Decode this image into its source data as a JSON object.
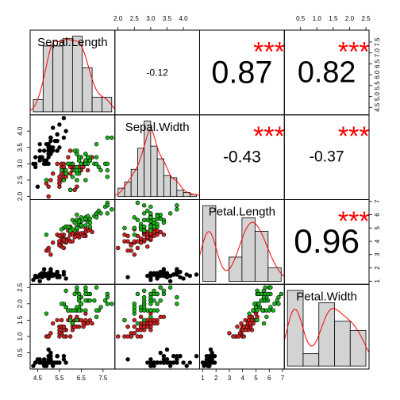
{
  "chart_data": {
    "type": "scatter_matrix",
    "variables": [
      {
        "name": "Sepal.Length",
        "lim": [
          4.156,
          8.044
        ],
        "xticks": [
          4.5,
          5.5,
          6.5,
          7.5
        ],
        "yticks": [
          4.5,
          {
            "value": 5,
            "label": "5.0"
          },
          5.5,
          {
            "value": 6,
            "label": "6.0"
          },
          6.5,
          {
            "value": 7,
            "label": "7.0"
          },
          7.5
        ],
        "bins": [
          4,
          4.5,
          5,
          5.5,
          6,
          6.5,
          7,
          7.5,
          8
        ],
        "counts": [
          5,
          27,
          27,
          30,
          31,
          18,
          6,
          6
        ]
      },
      {
        "name": "Sepal.Width",
        "lim": [
          1.904,
          4.496
        ],
        "xticks": [
          {
            "value": 2,
            "label": "2.0"
          },
          2.5,
          {
            "value": 3,
            "label": "3.0"
          },
          3.5,
          {
            "value": 4,
            "label": "4.0"
          }
        ],
        "yticks": [
          {
            "value": 2,
            "label": "2.0"
          },
          2.5,
          {
            "value": 3,
            "label": "3.0"
          },
          3.5,
          {
            "value": 4,
            "label": "4.0"
          }
        ],
        "bins": [
          2,
          2.2,
          2.4,
          2.6,
          2.8,
          3,
          3.2,
          3.4,
          3.6,
          3.8,
          4,
          4.2,
          4.4
        ],
        "counts": [
          4,
          7,
          13,
          23,
          36,
          24,
          18,
          10,
          9,
          3,
          2,
          1
        ]
      },
      {
        "name": "Petal.Length",
        "lim": [
          0.764,
          7.136
        ],
        "xticks": [
          1,
          2,
          3,
          4,
          5,
          6,
          7
        ],
        "yticks": [
          1,
          2,
          3,
          4,
          5,
          6,
          7
        ],
        "bins": [
          1,
          2,
          3,
          4,
          5,
          6,
          7
        ],
        "counts": [
          50,
          0,
          16,
          42,
          33,
          9
        ]
      },
      {
        "name": "Petal.Width",
        "lim": [
          0.004,
          2.596
        ],
        "xticks": [
          0.5,
          {
            "value": 1,
            "label": "1.0"
          },
          1.5,
          {
            "value": 2,
            "label": "2.0"
          },
          2.5
        ],
        "yticks": [
          0.5,
          {
            "value": 1,
            "label": "1.0"
          },
          1.5,
          {
            "value": 2,
            "label": "2.0"
          },
          2.5
        ],
        "bins": [
          0,
          0.5,
          1,
          1.5,
          2,
          2.5
        ],
        "counts": [
          49,
          8,
          41,
          29,
          23
        ]
      }
    ],
    "correlations": [
      {
        "value": -0.12
      },
      {
        "value": 0.87,
        "stars": "***"
      },
      {
        "value": 0.82,
        "stars": "***"
      },
      {
        "value": -0.43,
        "stars": "***"
      },
      {
        "value": -0.37,
        "stars": "***"
      },
      {
        "value": 0.96,
        "stars": "***"
      }
    ],
    "density_color": "#FF0000",
    "star_color": "#FF0000",
    "bar_color": "#D3D3D3",
    "series": [
      {
        "color": "#000000",
        "values": [
          [
            5.1,
            4.9,
            4.7,
            4.6,
            5.0,
            5.4,
            4.6,
            5.0,
            4.4,
            4.9,
            5.4,
            4.8,
            4.8,
            4.3,
            5.8,
            5.7,
            5.4,
            5.1,
            5.7,
            5.1,
            5.4,
            5.1,
            4.6,
            5.1,
            4.8,
            5.0,
            5.0,
            5.2,
            5.2,
            4.7,
            4.8,
            5.4,
            5.2,
            5.5,
            4.9,
            5.0,
            5.5,
            4.9,
            4.4,
            5.1,
            5.0,
            4.5,
            4.4,
            5.0,
            5.1,
            4.8,
            5.1,
            4.6,
            5.3,
            5.0
          ],
          [
            3.5,
            3.0,
            3.2,
            3.1,
            3.6,
            3.9,
            3.4,
            3.4,
            2.9,
            3.1,
            3.7,
            3.4,
            3.0,
            3.0,
            4.0,
            4.4,
            3.9,
            3.5,
            3.8,
            3.8,
            3.4,
            3.7,
            3.6,
            3.3,
            3.4,
            3.0,
            3.4,
            3.5,
            3.4,
            3.2,
            3.1,
            3.4,
            4.1,
            4.2,
            3.1,
            3.2,
            3.5,
            3.6,
            3.0,
            3.4,
            3.5,
            2.3,
            3.2,
            3.5,
            3.8,
            3.0,
            3.8,
            3.2,
            3.7,
            3.3
          ],
          [
            1.4,
            1.4,
            1.3,
            1.5,
            1.4,
            1.7,
            1.4,
            1.5,
            1.4,
            1.5,
            1.5,
            1.6,
            1.4,
            1.1,
            1.2,
            1.5,
            1.3,
            1.4,
            1.7,
            1.5,
            1.7,
            1.5,
            1.0,
            1.7,
            1.9,
            1.6,
            1.6,
            1.5,
            1.4,
            1.6,
            1.6,
            1.5,
            1.5,
            1.4,
            1.5,
            1.2,
            1.3,
            1.4,
            1.3,
            1.5,
            1.3,
            1.3,
            1.3,
            1.6,
            1.9,
            1.4,
            1.6,
            1.4,
            1.5,
            1.4
          ],
          [
            0.2,
            0.2,
            0.2,
            0.2,
            0.2,
            0.4,
            0.3,
            0.2,
            0.2,
            0.1,
            0.2,
            0.2,
            0.1,
            0.1,
            0.2,
            0.4,
            0.4,
            0.3,
            0.3,
            0.3,
            0.2,
            0.4,
            0.2,
            0.5,
            0.2,
            0.2,
            0.4,
            0.2,
            0.2,
            0.2,
            0.2,
            0.4,
            0.1,
            0.2,
            0.2,
            0.2,
            0.2,
            0.1,
            0.2,
            0.2,
            0.3,
            0.3,
            0.2,
            0.6,
            0.4,
            0.3,
            0.2,
            0.2,
            0.2,
            0.2
          ]
        ]
      },
      {
        "color": "#D42020",
        "values": [
          [
            7.0,
            6.4,
            6.9,
            5.5,
            6.5,
            5.7,
            6.3,
            4.9,
            6.6,
            5.2,
            5.0,
            5.9,
            6.0,
            6.1,
            5.6,
            6.7,
            5.6,
            5.8,
            6.2,
            5.6,
            5.9,
            6.1,
            6.3,
            6.1,
            6.4,
            6.6,
            6.8,
            6.7,
            6.0,
            5.7,
            5.5,
            5.5,
            5.8,
            6.0,
            5.4,
            6.0,
            6.7,
            6.3,
            5.6,
            5.5,
            5.5,
            6.1,
            5.8,
            5.0,
            5.6,
            5.7,
            5.7,
            6.2,
            5.1,
            5.7
          ],
          [
            3.2,
            3.2,
            3.1,
            2.3,
            2.8,
            2.8,
            3.3,
            2.4,
            2.9,
            2.7,
            2.0,
            3.0,
            2.2,
            2.9,
            2.9,
            3.1,
            3.0,
            2.7,
            2.2,
            2.5,
            3.2,
            2.8,
            2.5,
            2.8,
            2.9,
            3.0,
            2.8,
            3.0,
            2.9,
            2.6,
            2.4,
            2.4,
            2.7,
            2.7,
            3.0,
            3.4,
            3.1,
            2.3,
            3.0,
            2.5,
            2.6,
            3.0,
            2.6,
            2.3,
            2.7,
            3.0,
            2.9,
            2.9,
            2.5,
            2.8
          ],
          [
            4.7,
            4.5,
            4.9,
            4.0,
            4.6,
            4.5,
            4.7,
            3.3,
            4.6,
            3.9,
            3.5,
            4.2,
            4.0,
            4.7,
            3.6,
            4.4,
            4.5,
            4.1,
            4.5,
            3.9,
            4.8,
            4.0,
            4.9,
            4.7,
            4.3,
            4.4,
            4.8,
            5.0,
            4.5,
            3.5,
            3.8,
            3.7,
            3.9,
            5.1,
            4.5,
            4.5,
            4.7,
            4.4,
            4.1,
            4.0,
            4.4,
            4.6,
            4.0,
            3.3,
            4.2,
            4.2,
            4.2,
            4.3,
            3.0,
            4.1
          ],
          [
            1.4,
            1.5,
            1.5,
            1.3,
            1.5,
            1.3,
            1.6,
            1.0,
            1.3,
            1.4,
            1.0,
            1.5,
            1.0,
            1.4,
            1.3,
            1.4,
            1.5,
            1.0,
            1.5,
            1.1,
            1.8,
            1.3,
            1.5,
            1.2,
            1.3,
            1.4,
            1.4,
            1.7,
            1.5,
            1.0,
            1.1,
            1.0,
            1.2,
            1.6,
            1.5,
            1.6,
            1.5,
            1.3,
            1.3,
            1.3,
            1.2,
            1.4,
            1.2,
            1.0,
            1.3,
            1.2,
            1.3,
            1.3,
            1.1,
            1.3
          ]
        ]
      },
      {
        "color": "#16B816",
        "values": [
          [
            6.3,
            5.8,
            7.1,
            6.3,
            6.5,
            7.6,
            4.9,
            7.3,
            6.7,
            7.2,
            6.5,
            6.4,
            6.8,
            5.7,
            5.8,
            6.4,
            6.5,
            7.7,
            7.7,
            6.0,
            6.9,
            5.6,
            7.7,
            6.3,
            6.7,
            7.2,
            6.2,
            6.1,
            6.4,
            7.2,
            7.4,
            7.9,
            6.4,
            6.3,
            6.1,
            7.7,
            6.3,
            6.4,
            6.0,
            6.9,
            6.7,
            6.9,
            5.8,
            6.8,
            6.7,
            6.7,
            6.3,
            6.5,
            6.2,
            5.9
          ],
          [
            3.3,
            2.7,
            3.0,
            2.9,
            3.0,
            3.0,
            2.5,
            2.9,
            2.5,
            3.6,
            3.2,
            2.7,
            3.0,
            2.5,
            2.8,
            3.2,
            3.0,
            3.8,
            2.6,
            2.2,
            3.2,
            2.8,
            2.8,
            2.7,
            3.3,
            3.2,
            2.8,
            3.0,
            2.8,
            3.0,
            2.8,
            3.8,
            2.8,
            2.8,
            2.6,
            3.0,
            3.4,
            3.1,
            3.0,
            3.1,
            3.1,
            3.1,
            2.7,
            3.2,
            3.3,
            3.0,
            2.5,
            3.0,
            3.4,
            3.0
          ],
          [
            6.0,
            5.1,
            5.9,
            5.6,
            5.8,
            6.6,
            4.5,
            6.3,
            5.8,
            6.1,
            5.1,
            5.3,
            5.5,
            5.0,
            5.1,
            5.3,
            5.5,
            6.7,
            6.9,
            5.0,
            5.7,
            4.9,
            6.7,
            4.9,
            5.7,
            6.0,
            4.8,
            4.9,
            5.6,
            5.8,
            6.1,
            6.4,
            5.6,
            5.1,
            5.6,
            6.1,
            5.6,
            5.5,
            4.8,
            5.4,
            5.6,
            5.1,
            5.1,
            5.9,
            5.7,
            5.2,
            5.0,
            5.2,
            5.4,
            5.1
          ],
          [
            2.5,
            1.9,
            2.1,
            1.8,
            2.2,
            2.1,
            1.7,
            1.8,
            1.8,
            2.5,
            2.0,
            1.9,
            2.1,
            2.0,
            2.4,
            2.3,
            1.8,
            2.2,
            2.3,
            1.5,
            2.3,
            2.0,
            2.0,
            1.8,
            2.1,
            1.8,
            1.8,
            1.8,
            2.1,
            1.6,
            1.9,
            2.0,
            2.2,
            1.5,
            1.4,
            2.3,
            2.4,
            1.8,
            1.8,
            2.1,
            2.4,
            2.3,
            1.9,
            2.3,
            2.5,
            2.3,
            1.9,
            2.0,
            2.3,
            1.8
          ]
        ]
      }
    ]
  }
}
